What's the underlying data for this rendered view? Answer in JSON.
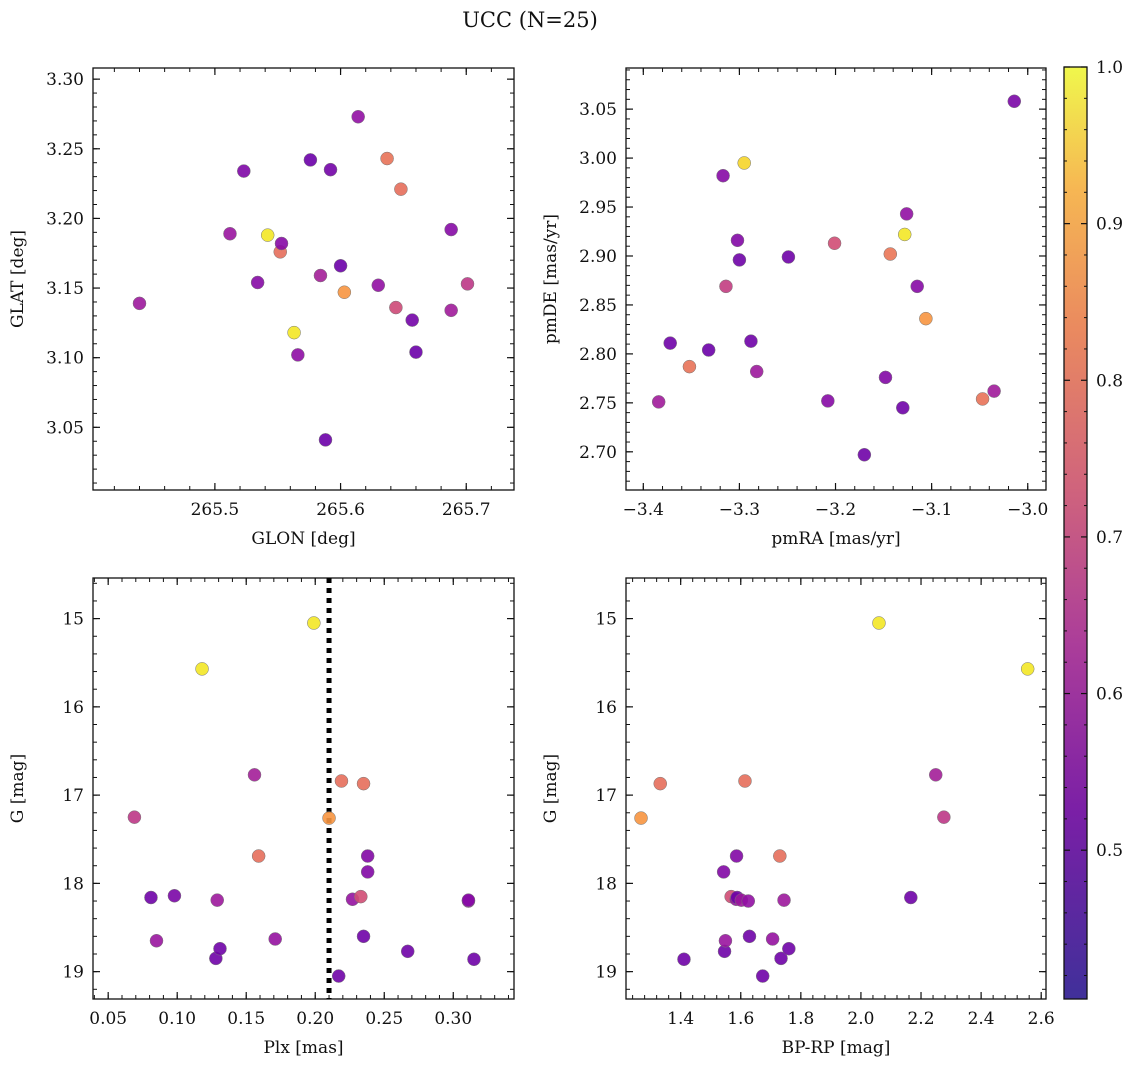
{
  "figure": {
    "suptitle": "UCC (N=25)"
  },
  "colorbar": {
    "min": 0.405,
    "max": 1.0,
    "colormap": "plasma",
    "ticks": [
      0.5,
      0.6,
      0.7,
      0.8,
      0.9,
      1.0
    ],
    "tick_labels": [
      "0.5",
      "0.6",
      "0.7",
      "0.8",
      "0.9",
      "1.0"
    ]
  },
  "chart_data": [
    {
      "type": "scatter",
      "xlabel": "GLON [deg]",
      "ylabel": "GLAT [deg]",
      "xlim": [
        265.403,
        265.738
      ],
      "ylim": [
        3.005,
        3.308
      ],
      "y_inverted": false,
      "xticks": [
        265.5,
        265.6,
        265.7
      ],
      "xtick_labels": [
        "265.5",
        "265.6",
        "265.7"
      ],
      "yticks": [
        3.05,
        3.1,
        3.15,
        3.2,
        3.25,
        3.3
      ],
      "ytick_labels": [
        "3.05",
        "3.10",
        "3.15",
        "3.20",
        "3.25",
        "3.30"
      ],
      "points": [
        {
          "x": 265.44,
          "y": 3.139,
          "c": 0.56
        },
        {
          "x": 265.512,
          "y": 3.189,
          "c": 0.55
        },
        {
          "x": 265.523,
          "y": 3.234,
          "c": 0.48
        },
        {
          "x": 265.534,
          "y": 3.154,
          "c": 0.5
        },
        {
          "x": 265.542,
          "y": 3.188,
          "c": 0.99
        },
        {
          "x": 265.552,
          "y": 3.176,
          "c": 0.84
        },
        {
          "x": 265.553,
          "y": 3.182,
          "c": 0.5
        },
        {
          "x": 265.563,
          "y": 3.118,
          "c": 0.99
        },
        {
          "x": 265.566,
          "y": 3.102,
          "c": 0.52
        },
        {
          "x": 265.576,
          "y": 3.242,
          "c": 0.43
        },
        {
          "x": 265.584,
          "y": 3.159,
          "c": 0.58
        },
        {
          "x": 265.588,
          "y": 3.041,
          "c": 0.43
        },
        {
          "x": 265.592,
          "y": 3.235,
          "c": 0.45
        },
        {
          "x": 265.6,
          "y": 3.166,
          "c": 0.43
        },
        {
          "x": 265.603,
          "y": 3.147,
          "c": 0.93
        },
        {
          "x": 265.614,
          "y": 3.273,
          "c": 0.53
        },
        {
          "x": 265.63,
          "y": 3.152,
          "c": 0.53
        },
        {
          "x": 265.637,
          "y": 3.243,
          "c": 0.85
        },
        {
          "x": 265.644,
          "y": 3.136,
          "c": 0.72
        },
        {
          "x": 265.648,
          "y": 3.221,
          "c": 0.84
        },
        {
          "x": 265.657,
          "y": 3.127,
          "c": 0.45
        },
        {
          "x": 265.66,
          "y": 3.104,
          "c": 0.43
        },
        {
          "x": 265.688,
          "y": 3.134,
          "c": 0.57
        },
        {
          "x": 265.688,
          "y": 3.192,
          "c": 0.5
        },
        {
          "x": 265.701,
          "y": 3.153,
          "c": 0.66
        }
      ]
    },
    {
      "type": "scatter",
      "xlabel": "pmRA [mas/yr]",
      "ylabel": "pmDE [mas/yr]",
      "xlim": [
        -3.418,
        -2.981
      ],
      "ylim": [
        2.661,
        3.092
      ],
      "y_inverted": false,
      "xticks": [
        -3.4,
        -3.3,
        -3.2,
        -3.1,
        -3.0
      ],
      "xtick_labels": [
        "−3.4",
        "−3.3",
        "−3.2",
        "−3.1",
        "−3.0"
      ],
      "yticks": [
        2.7,
        2.75,
        2.8,
        2.85,
        2.9,
        2.95,
        3.0,
        3.05
      ],
      "ytick_labels": [
        "2.70",
        "2.75",
        "2.80",
        "2.85",
        "2.90",
        "2.95",
        "3.00",
        "3.05"
      ],
      "points": [
        {
          "x": -3.384,
          "y": 2.751,
          "c": 0.57
        },
        {
          "x": -3.372,
          "y": 2.811,
          "c": 0.44
        },
        {
          "x": -3.352,
          "y": 2.787,
          "c": 0.85
        },
        {
          "x": -3.332,
          "y": 2.804,
          "c": 0.43
        },
        {
          "x": -3.317,
          "y": 2.982,
          "c": 0.5
        },
        {
          "x": -3.314,
          "y": 2.869,
          "c": 0.68
        },
        {
          "x": -3.302,
          "y": 2.916,
          "c": 0.49
        },
        {
          "x": -3.3,
          "y": 2.896,
          "c": 0.44
        },
        {
          "x": -3.295,
          "y": 2.995,
          "c": 0.98
        },
        {
          "x": -3.288,
          "y": 2.813,
          "c": 0.44
        },
        {
          "x": -3.282,
          "y": 2.782,
          "c": 0.56
        },
        {
          "x": -3.249,
          "y": 2.899,
          "c": 0.44
        },
        {
          "x": -3.208,
          "y": 2.752,
          "c": 0.5
        },
        {
          "x": -3.201,
          "y": 2.913,
          "c": 0.73
        },
        {
          "x": -3.17,
          "y": 2.697,
          "c": 0.44
        },
        {
          "x": -3.148,
          "y": 2.776,
          "c": 0.49
        },
        {
          "x": -3.143,
          "y": 2.902,
          "c": 0.86
        },
        {
          "x": -3.13,
          "y": 2.745,
          "c": 0.44
        },
        {
          "x": -3.128,
          "y": 2.922,
          "c": 0.99
        },
        {
          "x": -3.126,
          "y": 2.943,
          "c": 0.53
        },
        {
          "x": -3.115,
          "y": 2.869,
          "c": 0.5
        },
        {
          "x": -3.106,
          "y": 2.836,
          "c": 0.93
        },
        {
          "x": -3.047,
          "y": 2.754,
          "c": 0.85
        },
        {
          "x": -3.035,
          "y": 2.762,
          "c": 0.57
        },
        {
          "x": -3.014,
          "y": 3.058,
          "c": 0.47
        }
      ]
    },
    {
      "type": "scatter",
      "xlabel": "Plx [mas]",
      "ylabel": "G [mag]",
      "xlim": [
        0.039,
        0.344
      ],
      "ylim": [
        19.31,
        14.54
      ],
      "y_inverted": true,
      "xticks": [
        0.05,
        0.1,
        0.15,
        0.2,
        0.25,
        0.3
      ],
      "xtick_labels": [
        "0.05",
        "0.10",
        "0.15",
        "0.20",
        "0.25",
        "0.30"
      ],
      "yticks": [
        15,
        16,
        17,
        18,
        19
      ],
      "ytick_labels": [
        "15",
        "16",
        "17",
        "18",
        "19"
      ],
      "vline": {
        "x": 0.21,
        "style": "dotted"
      },
      "points": [
        {
          "x": 0.069,
          "y": 17.25,
          "c": 0.66
        },
        {
          "x": 0.081,
          "y": 18.16,
          "c": 0.44
        },
        {
          "x": 0.085,
          "y": 18.65,
          "c": 0.55
        },
        {
          "x": 0.098,
          "y": 18.14,
          "c": 0.47
        },
        {
          "x": 0.118,
          "y": 15.57,
          "c": 0.99
        },
        {
          "x": 0.128,
          "y": 18.85,
          "c": 0.44
        },
        {
          "x": 0.129,
          "y": 18.19,
          "c": 0.56
        },
        {
          "x": 0.131,
          "y": 18.74,
          "c": 0.44
        },
        {
          "x": 0.156,
          "y": 16.77,
          "c": 0.58
        },
        {
          "x": 0.159,
          "y": 17.69,
          "c": 0.84
        },
        {
          "x": 0.171,
          "y": 18.63,
          "c": 0.54
        },
        {
          "x": 0.199,
          "y": 15.05,
          "c": 0.99
        },
        {
          "x": 0.21,
          "y": 17.26,
          "c": 0.93
        },
        {
          "x": 0.217,
          "y": 19.05,
          "c": 0.44
        },
        {
          "x": 0.219,
          "y": 16.84,
          "c": 0.84
        },
        {
          "x": 0.227,
          "y": 18.18,
          "c": 0.54
        },
        {
          "x": 0.233,
          "y": 18.15,
          "c": 0.73
        },
        {
          "x": 0.235,
          "y": 18.6,
          "c": 0.44
        },
        {
          "x": 0.235,
          "y": 16.87,
          "c": 0.84
        },
        {
          "x": 0.238,
          "y": 17.69,
          "c": 0.49
        },
        {
          "x": 0.238,
          "y": 17.87,
          "c": 0.49
        },
        {
          "x": 0.267,
          "y": 18.77,
          "c": 0.44
        },
        {
          "x": 0.311,
          "y": 18.2,
          "c": 0.53
        },
        {
          "x": 0.311,
          "y": 18.19,
          "c": 0.5
        },
        {
          "x": 0.315,
          "y": 18.86,
          "c": 0.44
        }
      ]
    },
    {
      "type": "scatter",
      "xlabel": "BP-RP [mag]",
      "ylabel": "G [mag]",
      "xlim": [
        1.218,
        2.616
      ],
      "ylim": [
        19.31,
        14.54
      ],
      "y_inverted": true,
      "xticks": [
        1.4,
        1.6,
        1.8,
        2.0,
        2.2,
        2.4,
        2.6
      ],
      "xtick_labels": [
        "1.4",
        "1.6",
        "1.8",
        "2.0",
        "2.2",
        "2.4",
        "2.6"
      ],
      "yticks": [
        15,
        16,
        17,
        18,
        19
      ],
      "ytick_labels": [
        "15",
        "16",
        "17",
        "18",
        "19"
      ],
      "points": [
        {
          "x": 1.268,
          "y": 17.26,
          "c": 0.93
        },
        {
          "x": 1.332,
          "y": 16.87,
          "c": 0.84
        },
        {
          "x": 1.411,
          "y": 18.86,
          "c": 0.44
        },
        {
          "x": 1.543,
          "y": 17.87,
          "c": 0.49
        },
        {
          "x": 1.546,
          "y": 18.77,
          "c": 0.44
        },
        {
          "x": 1.549,
          "y": 18.65,
          "c": 0.55
        },
        {
          "x": 1.568,
          "y": 18.15,
          "c": 0.73
        },
        {
          "x": 1.585,
          "y": 18.18,
          "c": 0.54
        },
        {
          "x": 1.586,
          "y": 17.69,
          "c": 0.49
        },
        {
          "x": 1.588,
          "y": 18.16,
          "c": 0.44
        },
        {
          "x": 1.602,
          "y": 18.19,
          "c": 0.56
        },
        {
          "x": 1.614,
          "y": 16.84,
          "c": 0.84
        },
        {
          "x": 1.625,
          "y": 18.2,
          "c": 0.53
        },
        {
          "x": 1.629,
          "y": 18.6,
          "c": 0.44
        },
        {
          "x": 1.673,
          "y": 19.05,
          "c": 0.44
        },
        {
          "x": 1.706,
          "y": 18.63,
          "c": 0.54
        },
        {
          "x": 1.73,
          "y": 17.69,
          "c": 0.84
        },
        {
          "x": 1.734,
          "y": 18.85,
          "c": 0.44
        },
        {
          "x": 1.744,
          "y": 18.19,
          "c": 0.56
        },
        {
          "x": 1.76,
          "y": 18.74,
          "c": 0.44
        },
        {
          "x": 2.06,
          "y": 15.05,
          "c": 0.99
        },
        {
          "x": 2.166,
          "y": 18.16,
          "c": 0.44
        },
        {
          "x": 2.249,
          "y": 16.77,
          "c": 0.58
        },
        {
          "x": 2.276,
          "y": 17.25,
          "c": 0.66
        },
        {
          "x": 2.555,
          "y": 15.57,
          "c": 0.99
        }
      ]
    }
  ]
}
